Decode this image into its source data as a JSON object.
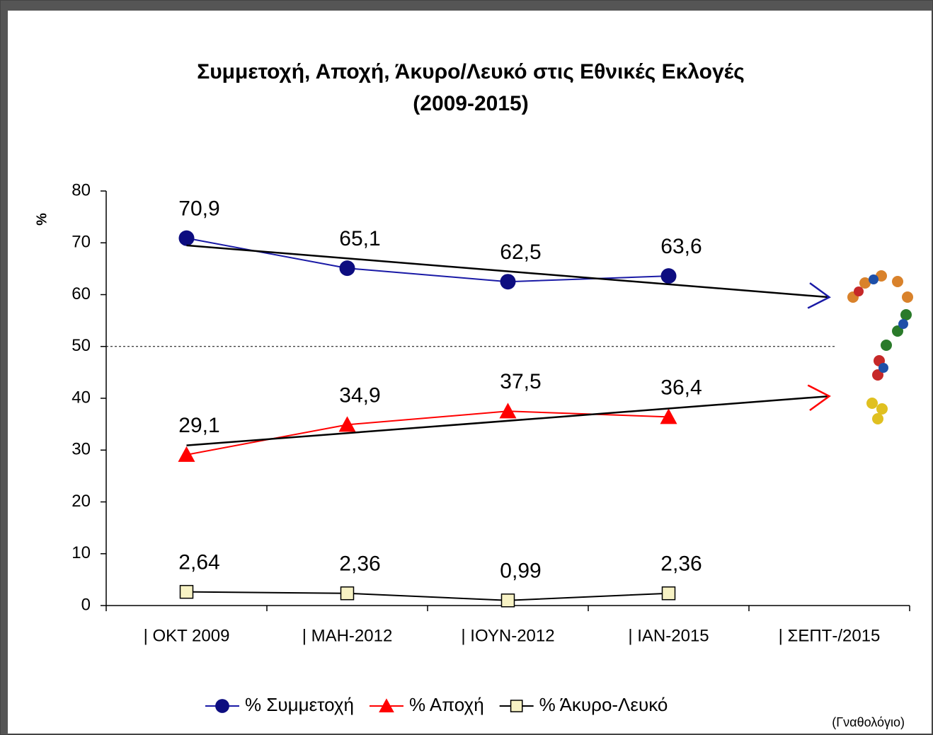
{
  "chart_data": {
    "type": "line",
    "title": [
      "Συμμετοχή, Αποχή, Άκυρο/Λευκό στις Εθνικές Εκλογές",
      "(2009-2015)"
    ],
    "y_label": "%",
    "source": "(Γναθολόγιο)",
    "categories": [
      "| ΟΚΤ 2009",
      "| ΜΑΗ-2012",
      "| ΙΟΥΝ-2012",
      "| ΙΑΝ-2015",
      "| ΣΕΠΤ-/2015"
    ],
    "ylim": [
      0,
      80
    ],
    "yticks": [
      0,
      10,
      20,
      30,
      40,
      50,
      60,
      70,
      80
    ],
    "reference_line": 50,
    "series": [
      {
        "name": "% Συμμετοχή",
        "color": "#1a1aa6",
        "marker": "circle",
        "marker_color": "#0d0d80",
        "values": [
          70.9,
          65.1,
          62.5,
          63.6,
          null
        ],
        "value_labels": [
          "70,9",
          "65,1",
          "62,5",
          "63,6",
          null
        ]
      },
      {
        "name": "% Αποχή",
        "color": "#ff0000",
        "marker": "triangle",
        "marker_color": "#ff0000",
        "values": [
          29.1,
          34.9,
          37.5,
          36.4,
          null
        ],
        "value_labels": [
          "29,1",
          "34,9",
          "37,5",
          "36,4",
          null
        ]
      },
      {
        "name": "% Άκυρο-Λευκό",
        "color": "#000000",
        "marker": "square",
        "marker_color": "#f7f2c4",
        "values": [
          2.64,
          2.36,
          0.99,
          2.36,
          null
        ],
        "value_labels": [
          "2,64",
          "2,36",
          "0,99",
          "2,36",
          null
        ]
      }
    ],
    "trendlines": [
      {
        "color": "#000000",
        "arrow_color": "#1a1aa6",
        "values": [
          69.5,
          59.5
        ]
      },
      {
        "color": "#000000",
        "arrow_color": "#ff0000",
        "values": [
          30.9,
          40.4
        ]
      }
    ]
  }
}
